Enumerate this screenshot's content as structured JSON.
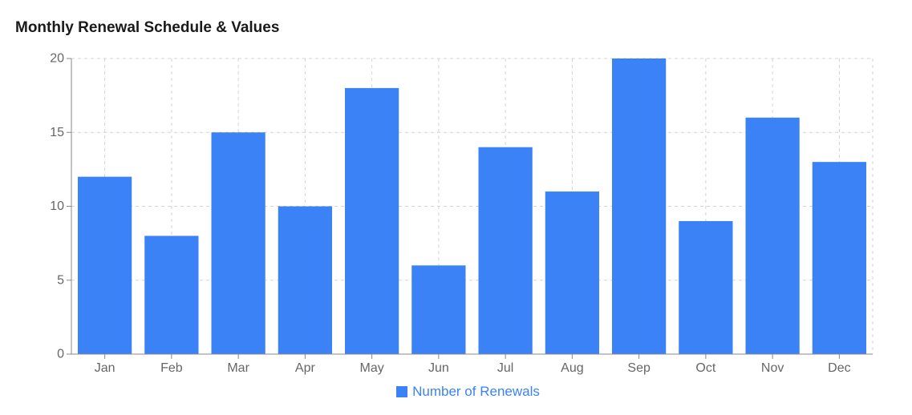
{
  "chart_data": {
    "type": "bar",
    "title": "Monthly Renewal Schedule & Values",
    "categories": [
      "Jan",
      "Feb",
      "Mar",
      "Apr",
      "May",
      "Jun",
      "Jul",
      "Aug",
      "Sep",
      "Oct",
      "Nov",
      "Dec"
    ],
    "series": [
      {
        "name": "Number of Renewals",
        "values": [
          12,
          8,
          15,
          10,
          18,
          6,
          14,
          11,
          20,
          9,
          16,
          13
        ],
        "color": "#3b82f6"
      }
    ],
    "xlabel": "",
    "ylabel": "",
    "ylim": [
      0,
      20
    ],
    "yticks": [
      0,
      5,
      10,
      15,
      20
    ],
    "grid": true,
    "legend_position": "bottom-center"
  }
}
